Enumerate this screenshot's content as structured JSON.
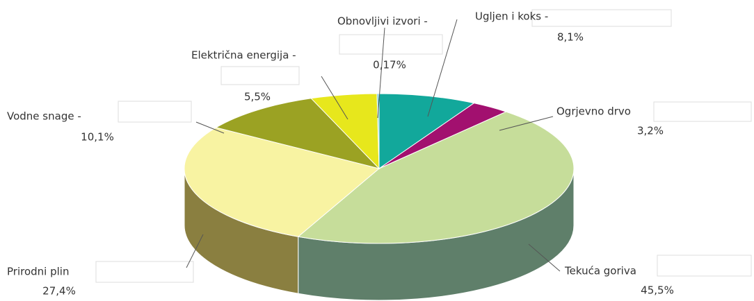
{
  "chart_data": {
    "type": "pie",
    "categories": [
      "Ugljen i koks -",
      "Ogrjevno drvo",
      "Tekuća goriva",
      "Prirodni plin",
      "Vodne snage -",
      "Električna energija -",
      "Obnovljivi izvori -"
    ],
    "values": [
      8.1,
      3.2,
      45.5,
      27.4,
      10.1,
      5.5,
      0.17
    ],
    "value_labels": [
      "8,1%",
      "3,2%",
      "45,5%",
      "27,4%",
      "10,1%",
      "5,5%",
      "0,17%"
    ],
    "colors": [
      "#12a89b",
      "#a2106f",
      "#c6dd9a",
      "#f8f3a2",
      "#9ba223",
      "#e7e71c",
      "#70c9d9"
    ],
    "side_colors": [
      "#0b6e66",
      "#6a0a49",
      "#5f7f6a",
      "#8a7f40",
      "#646a16",
      "#9a9a12",
      "#4a8a95"
    ]
  }
}
